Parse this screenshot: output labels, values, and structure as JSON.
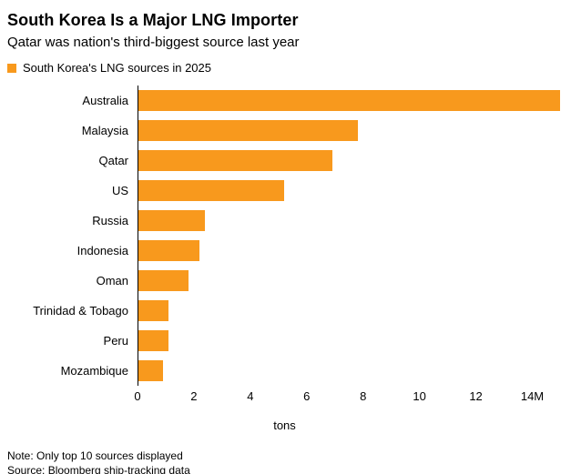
{
  "header": {
    "title": "South Korea Is a Major LNG Importer",
    "subtitle": "Qatar was nation's third-biggest source last year"
  },
  "legend": {
    "label": "South Korea's LNG sources in 2025",
    "color": "#F8991D"
  },
  "chart_data": {
    "type": "bar",
    "orientation": "horizontal",
    "title": "South Korea's LNG sources in 2025",
    "categories": [
      "Australia",
      "Malaysia",
      "Qatar",
      "US",
      "Russia",
      "Indonesia",
      "Oman",
      "Trinidad & Tobago",
      "Peru",
      "Mozambique"
    ],
    "values": [
      15.0,
      7.8,
      6.9,
      5.2,
      2.4,
      2.2,
      1.8,
      1.1,
      1.1,
      0.9
    ],
    "unit": "M tons",
    "xlabel": "tons",
    "ylabel": "",
    "xlim": [
      0,
      15.05
    ],
    "xticks": [
      0,
      2,
      4,
      6,
      8,
      10,
      12,
      14
    ],
    "xtick_labels": [
      "0",
      "2",
      "4",
      "6",
      "8",
      "10",
      "12",
      "14M"
    ],
    "grid": false,
    "legend_position": "top-left",
    "bar_color": "#F8991D",
    "axis_line_color": "#000000"
  },
  "footer": {
    "note": "Note: Only top 10 sources displayed",
    "source": "Source: Bloomberg ship-tracking data"
  }
}
